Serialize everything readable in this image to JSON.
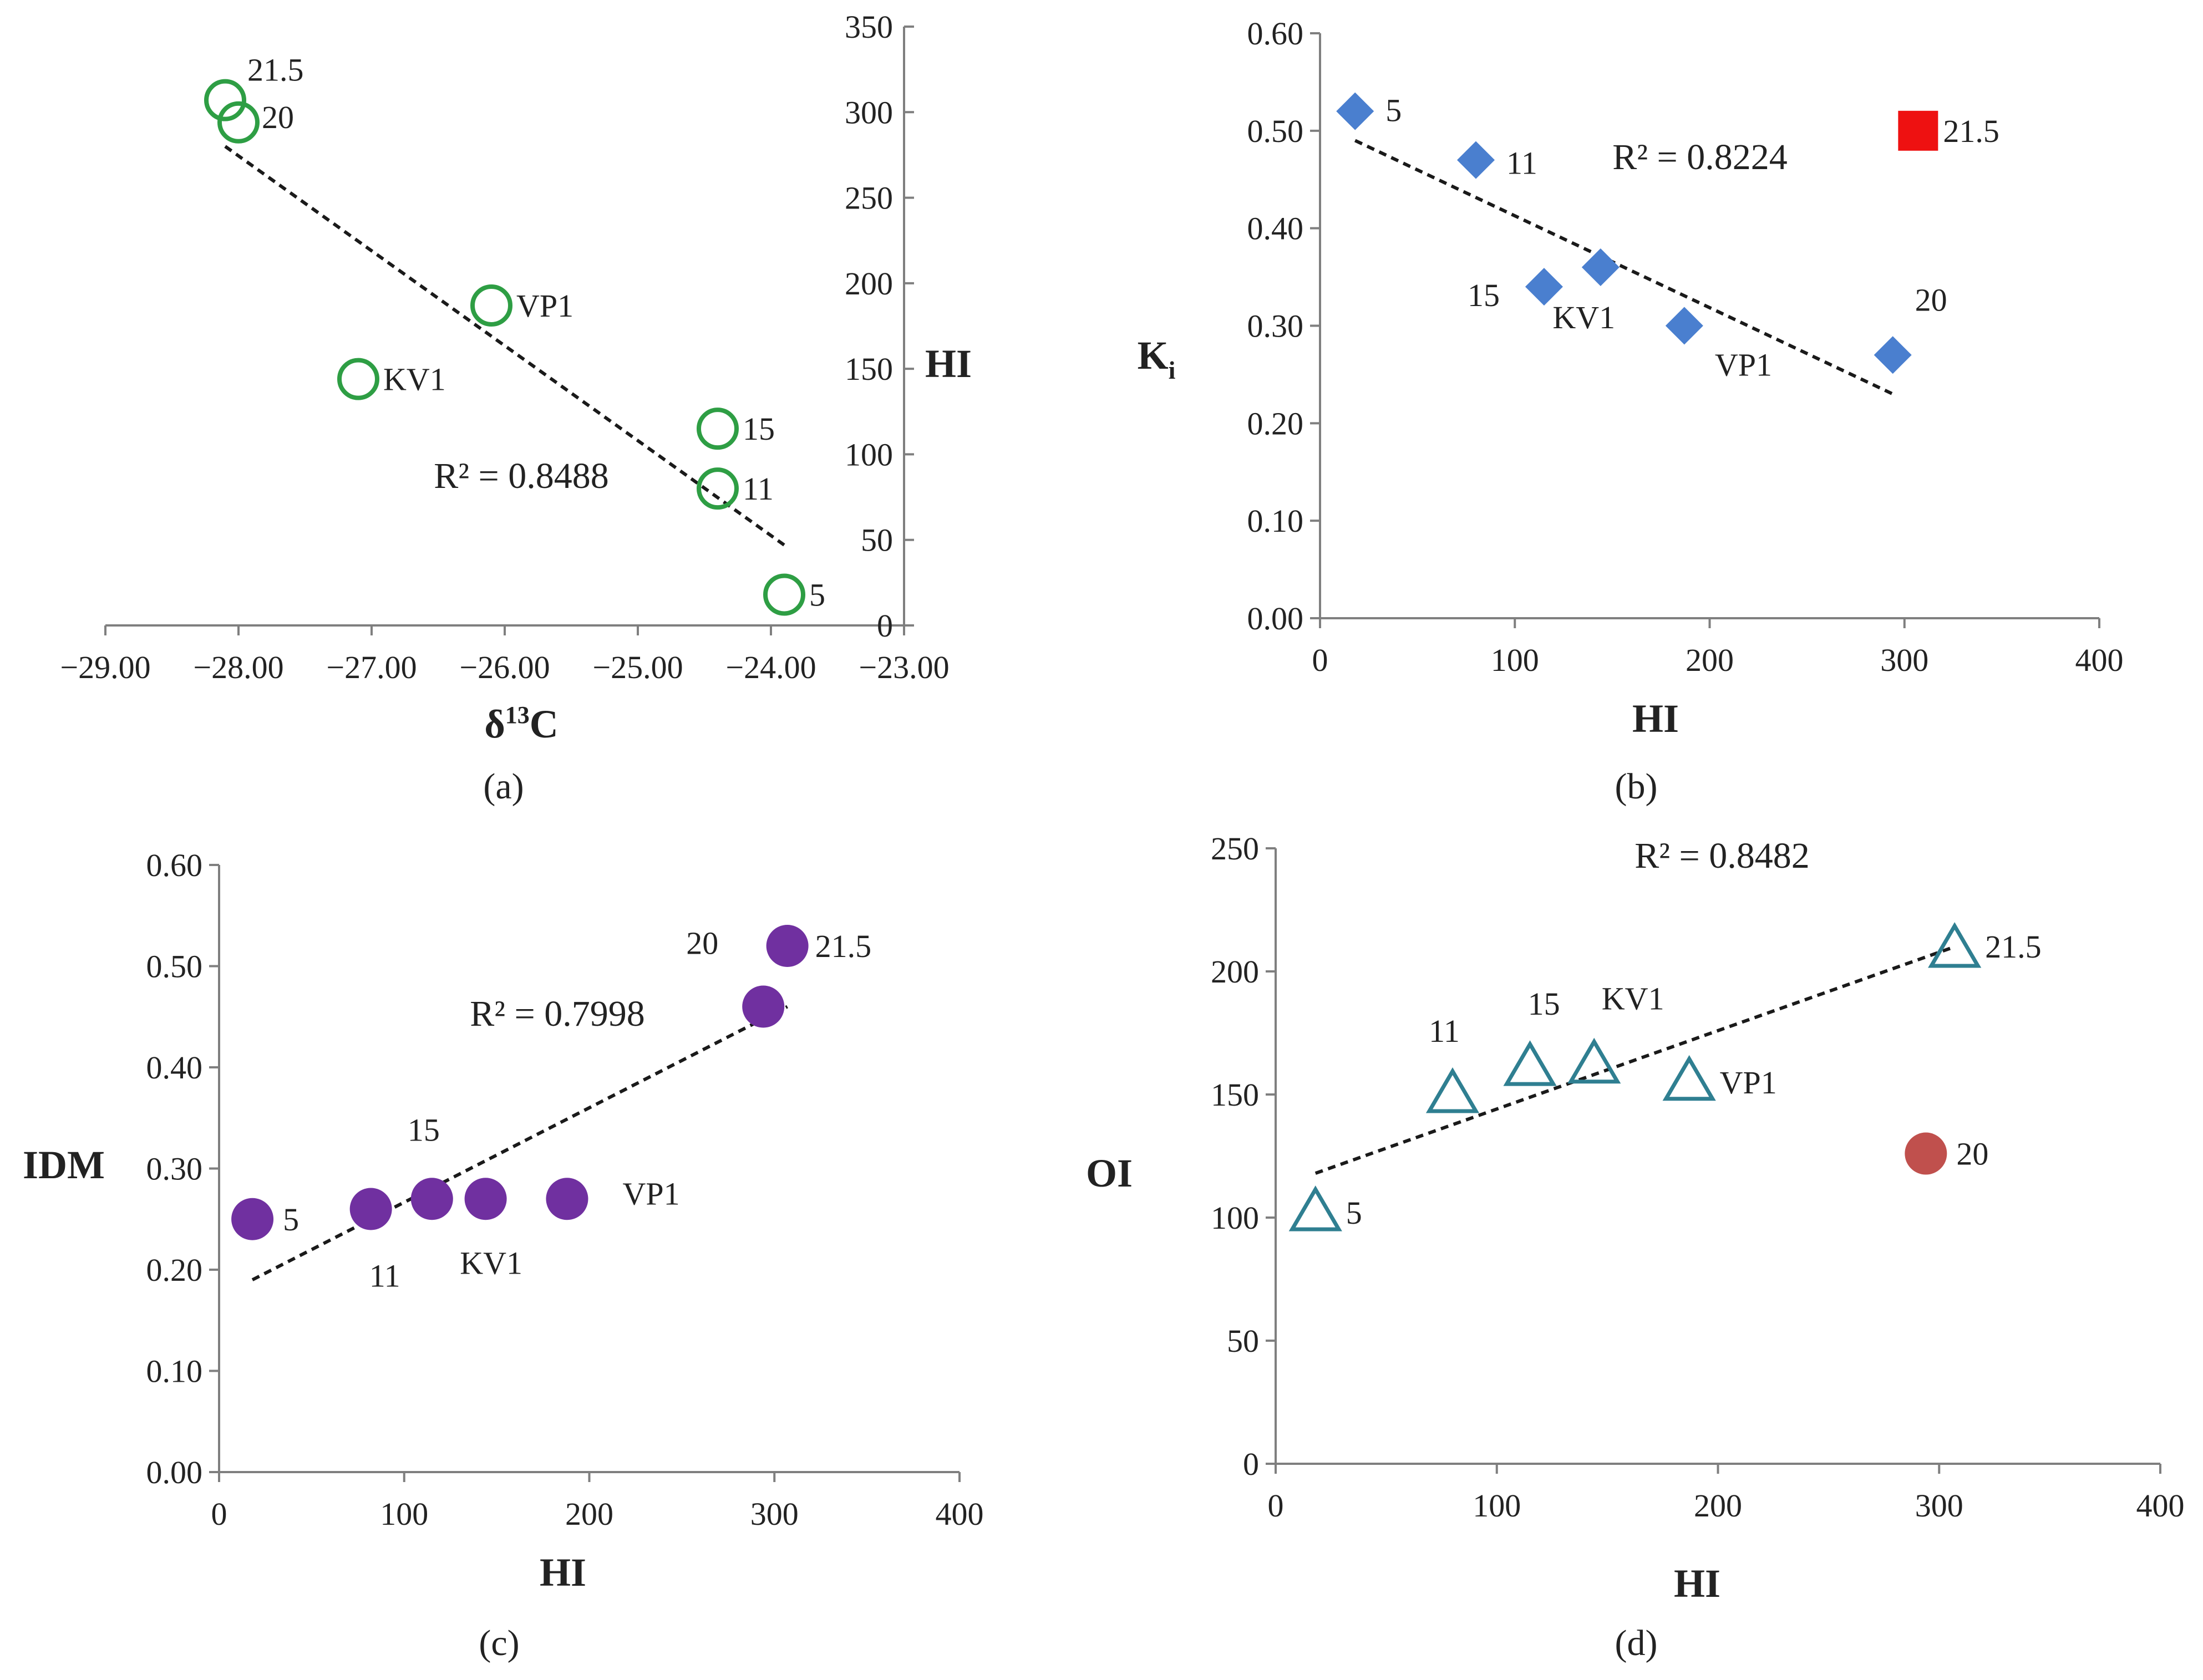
{
  "chart_data": [
    {
      "id": "a",
      "type": "scatter",
      "caption": "(a)",
      "xlabel": "δ",
      "xlabel_sup": "13",
      "xlabel_tail": "C",
      "ylabel": "HI",
      "xlim": [
        -29,
        -23
      ],
      "ylim": [
        0,
        350
      ],
      "xticks": [
        -29,
        -28,
        -27,
        -26,
        -25,
        -24,
        -23
      ],
      "xtick_labels": [
        "−29.00",
        "−28.00",
        "−27.00",
        "−26.00",
        "−25.00",
        "−24.00",
        "−23.00"
      ],
      "yticks": [
        0,
        50,
        100,
        150,
        200,
        250,
        300,
        350
      ],
      "ytick_labels": [
        "0",
        "50",
        "100",
        "150",
        "200",
        "250",
        "300",
        "350"
      ],
      "marker": "open-circle",
      "color": "#2e9e44",
      "points": [
        {
          "label": "21.5",
          "x": -28.1,
          "y": 307
        },
        {
          "label": "20",
          "x": -28.0,
          "y": 294
        },
        {
          "label": "VP1",
          "x": -26.1,
          "y": 187
        },
        {
          "label": "KV1",
          "x": -27.1,
          "y": 144
        },
        {
          "label": "15",
          "x": -24.4,
          "y": 115
        },
        {
          "label": "11",
          "x": -24.4,
          "y": 80
        },
        {
          "label": "5",
          "x": -23.9,
          "y": 18
        }
      ],
      "trendline": {
        "x": [
          -28.1,
          -23.9
        ],
        "y": [
          280,
          47
        ]
      },
      "r2_text": "R² = 0.8488"
    },
    {
      "id": "b",
      "type": "scatter",
      "caption": "(b)",
      "xlabel": "HI",
      "ylabel": "K",
      "ylabel_sub": "i",
      "xlim": [
        0,
        400
      ],
      "ylim": [
        0,
        0.6
      ],
      "xticks": [
        0,
        100,
        200,
        300,
        400
      ],
      "xtick_labels": [
        "0",
        "100",
        "200",
        "300",
        "400"
      ],
      "yticks": [
        0,
        0.1,
        0.2,
        0.3,
        0.4,
        0.5,
        0.6
      ],
      "ytick_labels": [
        "0.00",
        "0.10",
        "0.20",
        "0.30",
        "0.40",
        "0.50",
        "0.60"
      ],
      "marker": "diamond",
      "color": "#4a7fcf",
      "points": [
        {
          "label": "5",
          "x": 18,
          "y": 0.52
        },
        {
          "label": "11",
          "x": 80,
          "y": 0.47
        },
        {
          "label": "15",
          "x": 115,
          "y": 0.34
        },
        {
          "label": "KV1",
          "x": 144,
          "y": 0.36
        },
        {
          "label": "VP1",
          "x": 187,
          "y": 0.3
        },
        {
          "label": "20",
          "x": 294,
          "y": 0.27
        }
      ],
      "outlier": {
        "label": "21.5",
        "x": 307,
        "y": 0.5,
        "marker": "square",
        "color": "#ee1111"
      },
      "trendline": {
        "x": [
          18,
          294
        ],
        "y": [
          0.49,
          0.23
        ]
      },
      "r2_text": "R² = 0.8224"
    },
    {
      "id": "c",
      "type": "scatter",
      "caption": "(c)",
      "xlabel": "HI",
      "ylabel": "IDM",
      "xlim": [
        0,
        400
      ],
      "ylim": [
        0,
        0.6
      ],
      "xticks": [
        0,
        100,
        200,
        300,
        400
      ],
      "xtick_labels": [
        "0",
        "100",
        "200",
        "300",
        "400"
      ],
      "yticks": [
        0,
        0.1,
        0.2,
        0.3,
        0.4,
        0.5,
        0.6
      ],
      "ytick_labels": [
        "0.00",
        "0.10",
        "0.20",
        "0.30",
        "0.40",
        "0.50",
        "0.60"
      ],
      "marker": "filled-circle",
      "color": "#7030a0",
      "points": [
        {
          "label": "5",
          "x": 18,
          "y": 0.25
        },
        {
          "label": "11",
          "x": 82,
          "y": 0.26
        },
        {
          "label": "15",
          "x": 115,
          "y": 0.27
        },
        {
          "label": "KV1",
          "x": 144,
          "y": 0.27
        },
        {
          "label": "VP1",
          "x": 188,
          "y": 0.27
        },
        {
          "label": "20",
          "x": 294,
          "y": 0.46
        },
        {
          "label": "21.5",
          "x": 307,
          "y": 0.52
        }
      ],
      "trendline": {
        "x": [
          18,
          307
        ],
        "y": [
          0.19,
          0.46
        ]
      },
      "r2_text": "R² = 0.7998"
    },
    {
      "id": "d",
      "type": "scatter",
      "caption": "(d)",
      "xlabel": "HI",
      "ylabel": "OI",
      "xlim": [
        0,
        400
      ],
      "ylim": [
        0,
        250
      ],
      "xticks": [
        0,
        100,
        200,
        300,
        400
      ],
      "xtick_labels": [
        "0",
        "100",
        "200",
        "300",
        "400"
      ],
      "yticks": [
        0,
        50,
        100,
        150,
        200,
        250
      ],
      "ytick_labels": [
        "0",
        "50",
        "100",
        "150",
        "200",
        "250"
      ],
      "marker": "open-triangle",
      "color": "#2f7f91",
      "points": [
        {
          "label": "5",
          "x": 18,
          "y": 102
        },
        {
          "label": "11",
          "x": 80,
          "y": 150
        },
        {
          "label": "15",
          "x": 115,
          "y": 161
        },
        {
          "label": "KV1",
          "x": 144,
          "y": 162
        },
        {
          "label": "VP1",
          "x": 187,
          "y": 155
        },
        {
          "label": "21.5",
          "x": 307,
          "y": 209
        }
      ],
      "outlier": {
        "label": "20",
        "x": 294,
        "y": 126,
        "marker": "filled-circle",
        "color": "#c0504d"
      },
      "trendline": {
        "x": [
          18,
          307
        ],
        "y": [
          118,
          210
        ]
      },
      "r2_text": "R² = 0.8482"
    }
  ]
}
